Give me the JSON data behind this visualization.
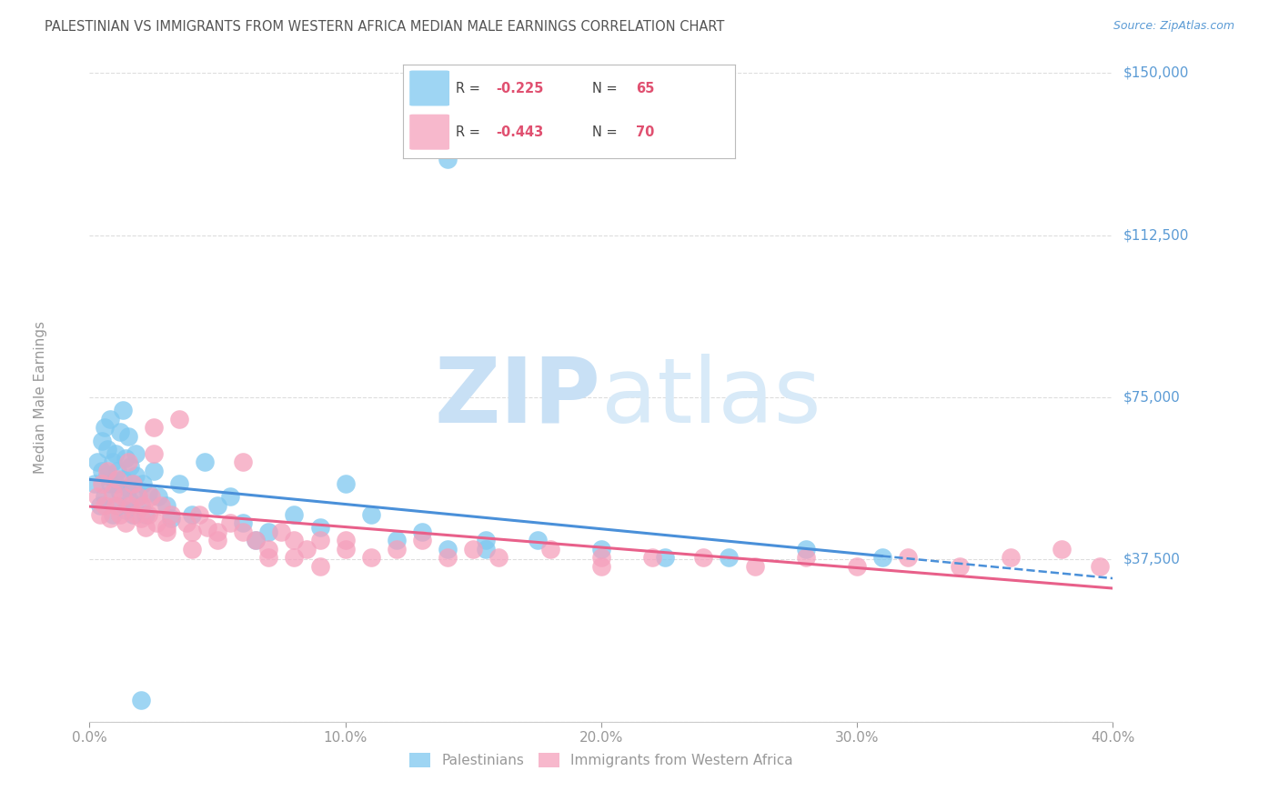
{
  "title": "PALESTINIAN VS IMMIGRANTS FROM WESTERN AFRICA MEDIAN MALE EARNINGS CORRELATION CHART",
  "source": "Source: ZipAtlas.com",
  "ylabel": "Median Male Earnings",
  "xlabel_ticks": [
    "0.0%",
    "10.0%",
    "20.0%",
    "30.0%",
    "40.0%"
  ],
  "ylabel_ticks": [
    0,
    37500,
    75000,
    112500,
    150000
  ],
  "ylabel_labels": [
    "",
    "$37,500",
    "$75,000",
    "$112,500",
    "$150,000"
  ],
  "xmin": 0.0,
  "xmax": 0.4,
  "ymin": 0,
  "ymax": 150000,
  "watermark_zip": "ZIP",
  "watermark_atlas": "atlas",
  "legend1_label": "Palestinians",
  "legend2_label": "Immigrants from Western Africa",
  "R1": -0.225,
  "N1": 65,
  "R2": -0.443,
  "N2": 70,
  "blue_color": "#7EC8F0",
  "pink_color": "#F5A0BC",
  "blue_line_color": "#4A90D9",
  "pink_line_color": "#E8608A",
  "title_color": "#555555",
  "axis_label_color": "#999999",
  "tick_color_right": "#5B9BD5",
  "grid_color": "#DDDDDD",
  "watermark_color_zip": "#C8E0F5",
  "watermark_color_atlas": "#D8EAF8",
  "blue_scatter_x": [
    0.002,
    0.003,
    0.004,
    0.005,
    0.005,
    0.006,
    0.006,
    0.007,
    0.007,
    0.008,
    0.008,
    0.009,
    0.009,
    0.01,
    0.01,
    0.011,
    0.011,
    0.012,
    0.012,
    0.013,
    0.013,
    0.014,
    0.014,
    0.015,
    0.015,
    0.016,
    0.016,
    0.017,
    0.017,
    0.018,
    0.018,
    0.019,
    0.02,
    0.021,
    0.022,
    0.023,
    0.025,
    0.027,
    0.03,
    0.032,
    0.035,
    0.04,
    0.045,
    0.05,
    0.055,
    0.06,
    0.065,
    0.07,
    0.08,
    0.09,
    0.1,
    0.11,
    0.12,
    0.13,
    0.14,
    0.155,
    0.175,
    0.2,
    0.225,
    0.25,
    0.28,
    0.31,
    0.14,
    0.02,
    0.155
  ],
  "blue_scatter_y": [
    55000,
    60000,
    50000,
    58000,
    65000,
    52000,
    68000,
    57000,
    63000,
    55000,
    70000,
    48000,
    60000,
    55000,
    62000,
    50000,
    58000,
    53000,
    67000,
    56000,
    72000,
    49000,
    61000,
    54000,
    66000,
    51000,
    59000,
    55000,
    48000,
    62000,
    57000,
    52000,
    50000,
    55000,
    48000,
    53000,
    58000,
    52000,
    50000,
    47000,
    55000,
    48000,
    60000,
    50000,
    52000,
    46000,
    42000,
    44000,
    48000,
    45000,
    55000,
    48000,
    42000,
    44000,
    40000,
    42000,
    42000,
    40000,
    38000,
    38000,
    40000,
    38000,
    130000,
    5000,
    40000
  ],
  "pink_scatter_x": [
    0.003,
    0.004,
    0.005,
    0.006,
    0.007,
    0.008,
    0.009,
    0.01,
    0.011,
    0.012,
    0.013,
    0.014,
    0.015,
    0.016,
    0.017,
    0.018,
    0.019,
    0.02,
    0.021,
    0.022,
    0.023,
    0.024,
    0.025,
    0.026,
    0.028,
    0.03,
    0.032,
    0.035,
    0.038,
    0.04,
    0.043,
    0.046,
    0.05,
    0.055,
    0.06,
    0.065,
    0.07,
    0.075,
    0.08,
    0.085,
    0.09,
    0.1,
    0.11,
    0.12,
    0.13,
    0.14,
    0.15,
    0.16,
    0.18,
    0.2,
    0.22,
    0.24,
    0.26,
    0.28,
    0.3,
    0.32,
    0.34,
    0.36,
    0.38,
    0.395,
    0.025,
    0.03,
    0.04,
    0.05,
    0.06,
    0.07,
    0.08,
    0.09,
    0.1,
    0.2
  ],
  "pink_scatter_y": [
    52000,
    48000,
    55000,
    50000,
    58000,
    47000,
    53000,
    50000,
    56000,
    48000,
    52000,
    46000,
    60000,
    50000,
    55000,
    48000,
    52000,
    47000,
    50000,
    45000,
    48000,
    52000,
    68000,
    46000,
    50000,
    45000,
    48000,
    70000,
    46000,
    44000,
    48000,
    45000,
    42000,
    46000,
    44000,
    42000,
    40000,
    44000,
    42000,
    40000,
    42000,
    40000,
    38000,
    40000,
    42000,
    38000,
    40000,
    38000,
    40000,
    38000,
    38000,
    38000,
    36000,
    38000,
    36000,
    38000,
    36000,
    38000,
    40000,
    36000,
    62000,
    44000,
    40000,
    44000,
    60000,
    38000,
    38000,
    36000,
    42000,
    36000
  ]
}
